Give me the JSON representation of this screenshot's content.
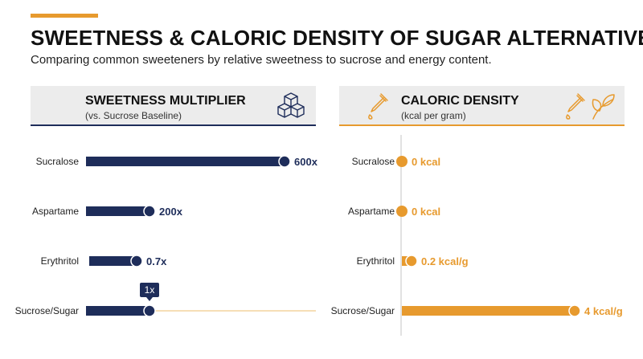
{
  "title": "SWEETNESS & CALORIC DENSITY OF SUGAR ALTERNATIVES",
  "subtitle": "Comparing common sweeteners by relative sweetness to sucrose and energy content.",
  "colors": {
    "navy": "#1e2d5a",
    "orange": "#e79a2e",
    "panel_bg": "#ececec"
  },
  "chart_data": [
    {
      "type": "bar",
      "orientation": "horizontal",
      "title": "SWEETNESS MULTIPLIER",
      "subtitle": "(vs. Sucrose Baseline)",
      "icon": "sugar-cubes-icon",
      "categories": [
        "Sucralose",
        "Aspartame",
        "Erythritol",
        "Sucrose/Sugar"
      ],
      "values": [
        600,
        200,
        0.7,
        1
      ],
      "labels": [
        "600x",
        "200x",
        "0.7x",
        ""
      ],
      "baseline_label": "1x",
      "color": "#1e2d5a"
    },
    {
      "type": "bar",
      "orientation": "horizontal",
      "title": "CALORIC DENSITY",
      "subtitle": "(kcal per gram)",
      "icons": [
        "dropper-icon",
        "leaf-icon"
      ],
      "categories": [
        "Sucralose",
        "Aspartame",
        "Erythritol",
        "Sucrose/Sugar"
      ],
      "values": [
        0,
        0,
        0.2,
        4
      ],
      "labels": [
        "0 kcal",
        "0 kcal",
        "0.2 kcal/g",
        "4 kcal/g"
      ],
      "color": "#e79a2e"
    }
  ]
}
